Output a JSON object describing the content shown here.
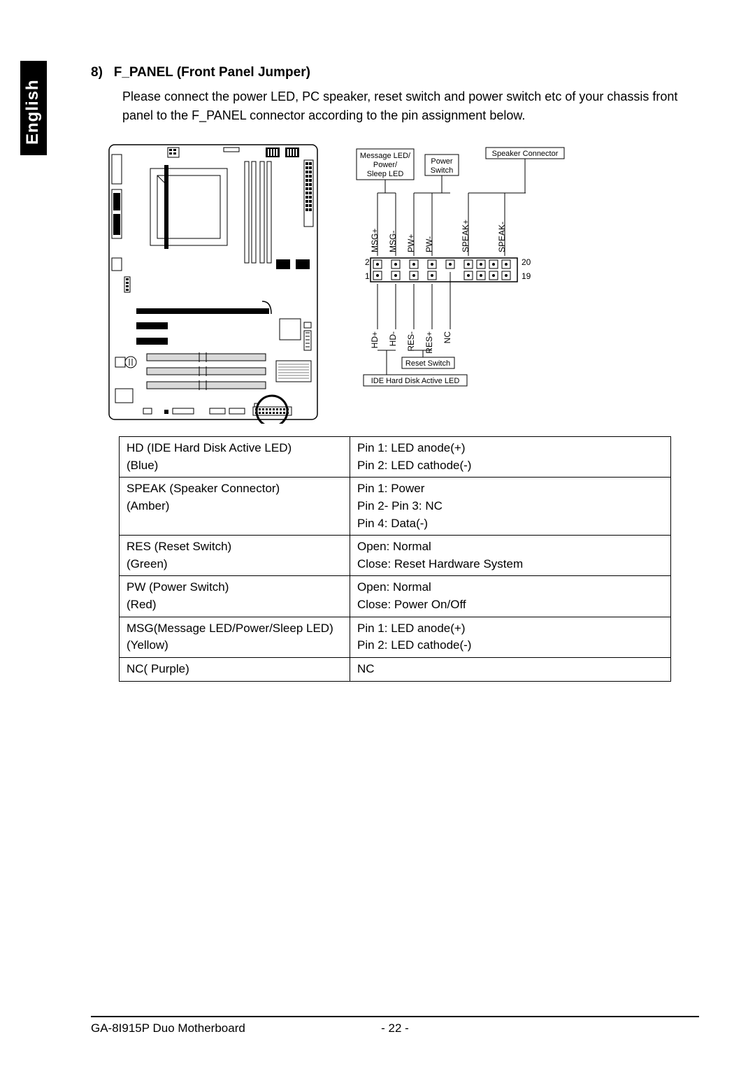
{
  "language": "English",
  "section": {
    "number": "8)",
    "title": "F_PANEL (Front Panel Jumper)",
    "intro": "Please connect the power LED, PC speaker, reset switch and power switch etc of your chassis front panel to the F_PANEL connector according to the pin assignment below."
  },
  "pinout": {
    "labels": {
      "msg_box": "Message LED/\nPower/\nSleep LED",
      "pw_box": "Power\nSwitch",
      "speaker_box": "Speaker Connector",
      "reset_box": "Reset Switch",
      "hdd_box": "IDE Hard Disk Active LED"
    },
    "pins_top": [
      "MSG+",
      "MSG-",
      "PW+",
      "PW-",
      "SPEAK+",
      "SPEAK-"
    ],
    "pins_bottom": [
      "HD+",
      "HD-",
      "RES-",
      "RES+",
      "NC"
    ],
    "row_numbers": {
      "top_left": "2",
      "bottom_left": "1",
      "top_right": "20",
      "bottom_right": "19"
    }
  },
  "table": {
    "rows": [
      {
        "left": [
          "HD (IDE Hard Disk Active LED)",
          "(Blue)"
        ],
        "right": [
          "Pin 1: LED anode(+)",
          "Pin 2: LED cathode(-)"
        ]
      },
      {
        "left": [
          "SPEAK (Speaker Connector)",
          "(Amber)"
        ],
        "right": [
          "Pin 1: Power",
          "Pin 2- Pin 3: NC",
          "Pin 4: Data(-)"
        ]
      },
      {
        "left": [
          "RES (Reset Switch)",
          "(Green)"
        ],
        "right": [
          "Open: Normal",
          "Close: Reset Hardware System"
        ]
      },
      {
        "left": [
          "PW (Power Switch)",
          "(Red)"
        ],
        "right": [
          "Open: Normal",
          "Close: Power On/Off"
        ]
      },
      {
        "left": [
          "MSG(Message LED/Power/Sleep LED)",
          "(Yellow)"
        ],
        "right": [
          "Pin 1: LED anode(+)",
          "Pin 2: LED cathode(-)"
        ]
      },
      {
        "left": [
          "NC( Purple)"
        ],
        "right": [
          "NC"
        ]
      }
    ]
  },
  "footer": {
    "product": "GA-8I915P Duo Motherboard",
    "page": "- 22 -"
  },
  "colors": {
    "text": "#000000",
    "background": "#ffffff",
    "tab": "#000000",
    "tab_text": "#ffffff",
    "table_border": "#000000",
    "diagram_stroke": "#000000",
    "diagram_fill_dark": "#000000",
    "highlight_circle": "#000000"
  },
  "typography": {
    "title_fontsize": 19,
    "body_fontsize": 18,
    "table_fontsize": 17,
    "diagram_label_fontsize": 11,
    "lang_fontsize": 24
  }
}
